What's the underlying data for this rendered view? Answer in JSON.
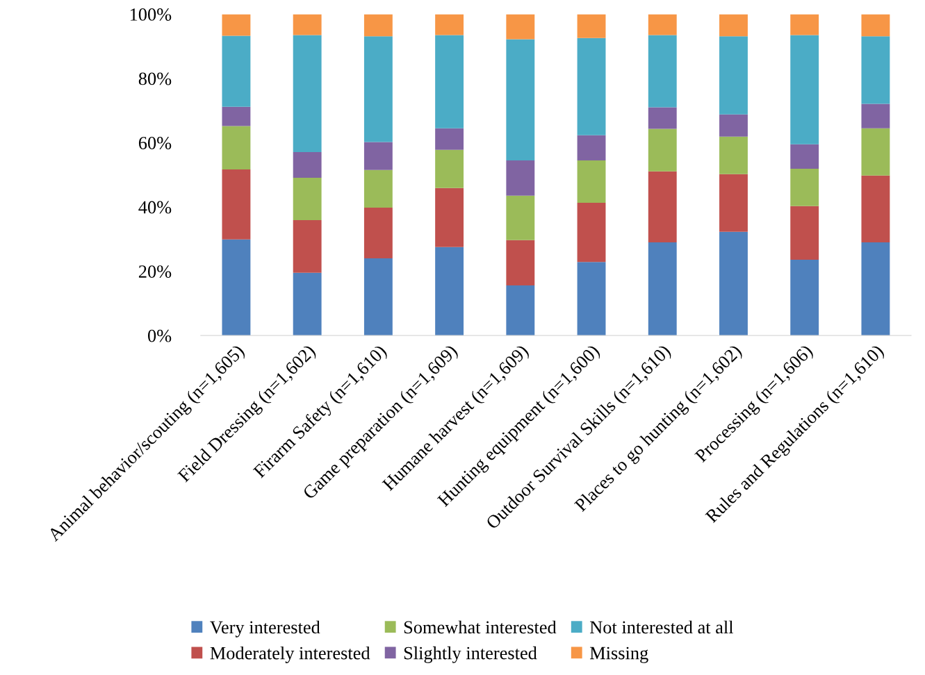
{
  "chart_data": {
    "type": "bar",
    "stacked": true,
    "categories": [
      "Animal behavior/scouting (n=1,605)",
      "Field Dressing (n=1,602)",
      "Firarm Safety (n=1,610)",
      "Game preparation (n=1,609)",
      "Humane harvest (n=1,609)",
      "Hunting equipment (n=1,600)",
      "Outdoor Survival Skills (n=1,610)",
      "Places to go hunting (n=1,602)",
      "Processing (n=1,606)",
      "Rules and Regulations (n=1,610)"
    ],
    "series": [
      {
        "name": "Very interested",
        "color": "#4f81bd",
        "values": [
          29.9,
          19.5,
          24.0,
          27.5,
          15.6,
          22.9,
          29.0,
          32.3,
          23.6,
          29.0
        ]
      },
      {
        "name": "Moderately interested",
        "color": "#c0504d",
        "values": [
          21.8,
          16.4,
          15.8,
          18.4,
          14.1,
          18.4,
          22.1,
          17.9,
          16.7,
          20.8
        ]
      },
      {
        "name": "Somewhat interested",
        "color": "#9bbb59",
        "values": [
          13.5,
          13.2,
          11.7,
          11.9,
          13.8,
          13.2,
          13.2,
          11.7,
          11.6,
          14.7
        ]
      },
      {
        "name": "Slightly interested",
        "color": "#8064a2",
        "values": [
          6.0,
          8.0,
          8.7,
          6.7,
          11.0,
          7.8,
          6.7,
          6.9,
          7.6,
          7.6
        ]
      },
      {
        "name": "Not interested at all",
        "color": "#4bacc6",
        "values": [
          22.1,
          36.4,
          32.9,
          29.0,
          37.7,
          30.3,
          22.5,
          24.3,
          34.0,
          21.0
        ]
      },
      {
        "name": "Missing",
        "color": "#f79646",
        "values": [
          6.7,
          6.5,
          6.9,
          6.5,
          7.8,
          7.4,
          6.5,
          6.9,
          6.5,
          6.9
        ]
      }
    ],
    "ylim": [
      0,
      100
    ],
    "yticks": [
      {
        "value": 0,
        "label": "0%"
      },
      {
        "value": 20,
        "label": "20%"
      },
      {
        "value": 40,
        "label": "40%"
      },
      {
        "value": 60,
        "label": "60%"
      },
      {
        "value": 80,
        "label": "80%"
      },
      {
        "value": 100,
        "label": "100%"
      }
    ],
    "grid": false,
    "legend": "bottom"
  }
}
